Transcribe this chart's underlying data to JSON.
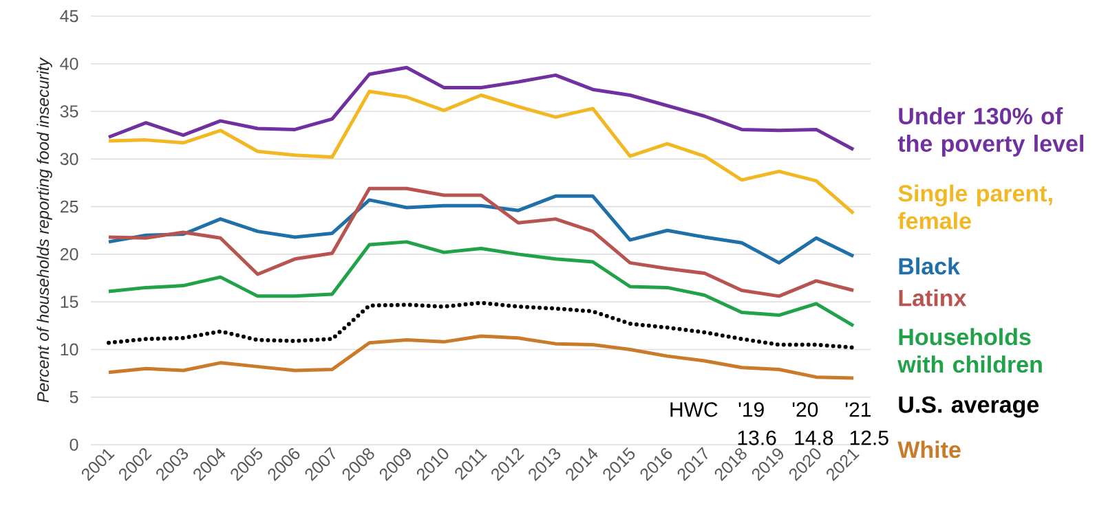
{
  "chart_data": {
    "type": "line",
    "ylabel": "Percent of households reporting food insecurity",
    "categories": [
      "2001",
      "2002",
      "2003",
      "2004",
      "2005",
      "2006",
      "2007",
      "2008",
      "2009",
      "2010",
      "2011",
      "2012",
      "2013",
      "2014",
      "2015",
      "2016",
      "2017",
      "2018",
      "2019",
      "2020",
      "2021"
    ],
    "ylim": [
      0,
      45
    ],
    "yticks": [
      0,
      5,
      10,
      15,
      20,
      25,
      30,
      35,
      40,
      45
    ],
    "grid": "y",
    "series": [
      {
        "name": "Under 130% of the poverty level",
        "color": "#7030a0",
        "values": [
          32.3,
          33.8,
          32.5,
          34.0,
          33.2,
          33.1,
          34.2,
          38.9,
          39.6,
          37.5,
          37.5,
          38.1,
          38.8,
          37.3,
          36.7,
          35.6,
          34.5,
          33.1,
          33.0,
          33.1,
          31.0
        ]
      },
      {
        "name": "Single parent, female",
        "color": "#f2b824",
        "values": [
          31.9,
          32.0,
          31.7,
          33.0,
          30.8,
          30.4,
          30.2,
          37.1,
          36.5,
          35.1,
          36.7,
          35.5,
          34.4,
          35.3,
          30.3,
          31.6,
          30.3,
          27.8,
          28.7,
          27.7,
          24.3
        ]
      },
      {
        "name": "Black",
        "color": "#1f6fa8",
        "values": [
          21.3,
          22.0,
          22.1,
          23.7,
          22.4,
          21.8,
          22.2,
          25.7,
          24.9,
          25.1,
          25.1,
          24.6,
          26.1,
          26.1,
          21.5,
          22.5,
          21.8,
          21.2,
          19.1,
          21.7,
          19.8
        ]
      },
      {
        "name": "Latinx",
        "color": "#b85450",
        "values": [
          21.8,
          21.7,
          22.3,
          21.7,
          17.9,
          19.5,
          20.1,
          26.9,
          26.9,
          26.2,
          26.2,
          23.3,
          23.7,
          22.4,
          19.1,
          18.5,
          18.0,
          16.2,
          15.6,
          17.2,
          16.2
        ]
      },
      {
        "name": "Households with children",
        "color": "#21a249",
        "values": [
          16.1,
          16.5,
          16.7,
          17.6,
          15.6,
          15.6,
          15.8,
          21.0,
          21.3,
          20.2,
          20.6,
          20.0,
          19.5,
          19.2,
          16.6,
          16.5,
          15.7,
          13.9,
          13.6,
          14.8,
          12.5
        ]
      },
      {
        "name": "U.S. average",
        "color": "#000000",
        "line_style": "dotted",
        "values": [
          10.7,
          11.1,
          11.2,
          11.9,
          11.0,
          10.9,
          11.1,
          14.6,
          14.7,
          14.5,
          14.9,
          14.5,
          14.3,
          14.0,
          12.7,
          12.3,
          11.8,
          11.1,
          10.5,
          10.5,
          10.2
        ]
      },
      {
        "name": "White",
        "color": "#c97a2b",
        "values": [
          7.6,
          8.0,
          7.8,
          8.6,
          8.2,
          7.8,
          7.9,
          10.7,
          11.0,
          10.8,
          11.4,
          11.2,
          10.6,
          10.5,
          10.0,
          9.3,
          8.8,
          8.1,
          7.9,
          7.1,
          7.0
        ]
      }
    ],
    "annotations": [
      "HWC",
      "'19",
      "'20",
      "'21",
      "13.6",
      "14.8",
      "12.5"
    ]
  }
}
